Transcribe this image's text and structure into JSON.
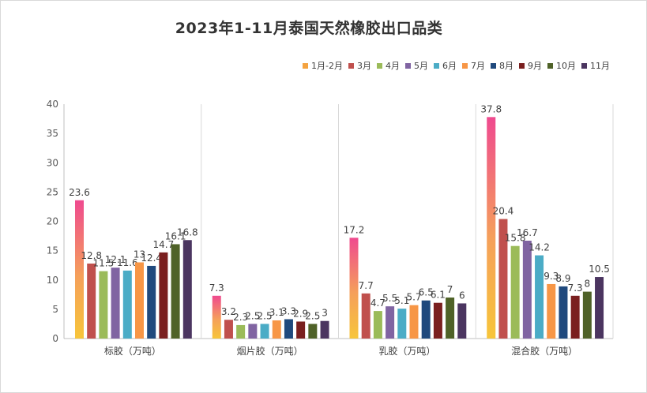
{
  "chart_data": {
    "type": "bar",
    "title": "2023年1-11月泰国天然橡胶出口品类",
    "categories": [
      "标胶（万吨）",
      "烟片胶（万吨）",
      "乳胶（万吨）",
      "混合胶（万吨）"
    ],
    "series": [
      {
        "name": "1月-2月",
        "values": [
          23.6,
          7.3,
          17.2,
          37.8
        ],
        "color": "#f4a340"
      },
      {
        "name": "3月",
        "values": [
          12.8,
          3.2,
          7.7,
          20.4
        ],
        "color": "#c0504d"
      },
      {
        "name": "4月",
        "values": [
          11.5,
          2.3,
          4.7,
          15.8
        ],
        "color": "#9bbb59"
      },
      {
        "name": "5月",
        "values": [
          12.1,
          2.5,
          5.5,
          16.7
        ],
        "color": "#8064a2"
      },
      {
        "name": "6月",
        "values": [
          11.6,
          2.5,
          5.1,
          14.2
        ],
        "color": "#4bacc6"
      },
      {
        "name": "7月",
        "values": [
          13,
          3.1,
          5.7,
          9.3
        ],
        "color": "#f79646"
      },
      {
        "name": "8月",
        "values": [
          12.4,
          3.3,
          6.5,
          8.9
        ],
        "color": "#1f497d"
      },
      {
        "name": "9月",
        "values": [
          14.7,
          2.9,
          6.1,
          7.3
        ],
        "color": "#7a1f1f"
      },
      {
        "name": "10月",
        "values": [
          16.1,
          2.5,
          7,
          8
        ],
        "color": "#4f6228"
      },
      {
        "name": "11月",
        "values": [
          16.8,
          3,
          6,
          10.5
        ],
        "color": "#4b3560"
      }
    ],
    "ylim": [
      0,
      40
    ],
    "yticks": [
      0,
      5,
      10,
      15,
      20,
      25,
      30,
      35,
      40
    ],
    "legend_position": "top-right",
    "grid": false
  }
}
